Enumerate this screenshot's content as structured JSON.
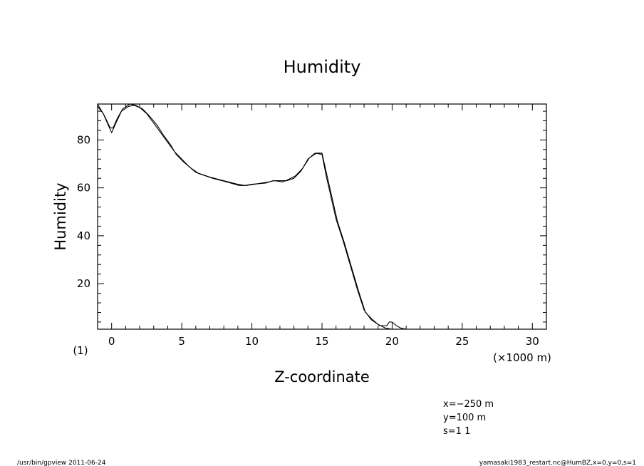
{
  "chart_data": {
    "type": "line",
    "title": "Humidity",
    "xlabel": "Z-coordinate",
    "ylabel": "Humidity",
    "x_unit_label": "(×1000 m)",
    "panel_label": "(1)",
    "xlim": [
      -1,
      31
    ],
    "ylim": [
      1,
      95
    ],
    "x_major_ticks": [
      0,
      5,
      10,
      15,
      20,
      25,
      30
    ],
    "y_major_ticks": [
      20,
      40,
      60,
      80
    ],
    "grid": false,
    "series": [
      {
        "x": [
          -1.0,
          -0.6,
          -0.3,
          0.0,
          0.3,
          0.7,
          1.2,
          1.6,
          2.0,
          2.5,
          3.0,
          3.5,
          4.0,
          4.5,
          5.0,
          5.5,
          6.0,
          7.0,
          8.0,
          9.0,
          9.5,
          10.0,
          11.0,
          11.5,
          12.0,
          12.5,
          13.0,
          13.5,
          14.0,
          14.5,
          15.0,
          15.3,
          16.0,
          16.5,
          17.0,
          17.5,
          18.0,
          18.5,
          19.0,
          19.5,
          20.0,
          20.5,
          21.0
        ],
        "y": [
          94,
          91,
          87,
          83,
          87,
          92,
          94,
          94.5,
          93.5,
          91,
          87,
          83,
          79,
          75,
          72,
          69,
          66.5,
          64.5,
          63,
          61.5,
          61,
          61.5,
          62,
          63,
          63,
          63,
          64,
          67,
          72,
          74.5,
          74,
          65,
          47,
          38,
          28,
          18,
          9,
          5,
          3,
          1.5,
          1,
          1,
          1
        ]
      },
      {
        "x": [
          -1.0,
          -0.5,
          -0.1,
          0.1,
          0.4,
          0.8,
          1.3,
          1.7,
          2.2,
          2.7,
          3.2,
          3.7,
          4.2,
          4.6,
          5.1,
          5.6,
          6.2,
          7.2,
          8.2,
          9.1,
          9.6,
          10.2,
          11.2,
          11.6,
          12.2,
          12.6,
          13.1,
          13.6,
          14.1,
          14.6,
          15.0,
          15.4,
          16.1,
          16.6,
          17.1,
          17.6,
          18.1,
          18.6,
          19.1,
          19.6,
          19.8,
          20.0,
          20.3,
          20.6,
          21.0
        ],
        "y": [
          95,
          90,
          85,
          85,
          89,
          93,
          95,
          94.5,
          93,
          90,
          86.5,
          82,
          78,
          74,
          71,
          68.5,
          66,
          64,
          62.5,
          61,
          61,
          61.5,
          62.5,
          63,
          62.5,
          63.5,
          65,
          68,
          72.5,
          74.5,
          74.5,
          64,
          46,
          37,
          27,
          17,
          8,
          5,
          2.5,
          2.5,
          4,
          4,
          2.5,
          1.5,
          1
        ]
      }
    ]
  },
  "info": {
    "x_line": "x=−250  m",
    "y_line": "y=100  m",
    "s_line": "s=1 1"
  },
  "footer": {
    "left": "/usr/bin/gpview   2011-06-24",
    "right": "yamasaki1983_restart.nc@HumBZ,x=0,y=0,s=1"
  },
  "colors": {
    "line": "#000000",
    "background": "#ffffff"
  }
}
